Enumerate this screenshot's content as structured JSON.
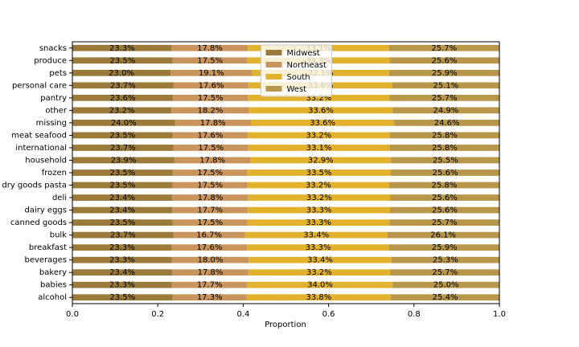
{
  "chart_data": {
    "type": "stacked_barh",
    "x_label": "Proportion",
    "categories": [
      "alcohol",
      "babies",
      "bakery",
      "beverages",
      "breakfast",
      "bulk",
      "canned goods",
      "dairy eggs",
      "deli",
      "dry goods pasta",
      "frozen",
      "household",
      "international",
      "meat seafood",
      "missing",
      "other",
      "pantry",
      "personal care",
      "pets",
      "produce",
      "snacks"
    ],
    "series": [
      {
        "name": "Midwest",
        "color": "#9c7b3a",
        "values": [
          0.235,
          0.233,
          0.234,
          0.233,
          0.233,
          0.237,
          0.235,
          0.234,
          0.234,
          0.235,
          0.235,
          0.239,
          0.237,
          0.235,
          0.24,
          0.232,
          0.236,
          0.237,
          0.23,
          0.235,
          0.233
        ],
        "value_labels": [
          "23.5%",
          "23.3%",
          "23.4%",
          "23.3%",
          "23.3%",
          "23.7%",
          "23.5%",
          "23.4%",
          "23.4%",
          "23.5%",
          "23.5%",
          "23.9%",
          "23.7%",
          "23.5%",
          "24.0%",
          "23.2%",
          "23.6%",
          "23.7%",
          "23.0%",
          "23.5%",
          "23.3%"
        ]
      },
      {
        "name": "Northeast",
        "color": "#c9955c",
        "values": [
          0.173,
          0.177,
          0.178,
          0.18,
          0.176,
          0.167,
          0.175,
          0.177,
          0.178,
          0.175,
          0.175,
          0.178,
          0.175,
          0.176,
          0.178,
          0.182,
          0.175,
          0.176,
          0.191,
          0.175,
          0.178
        ],
        "value_labels": [
          "17.3%",
          "17.7%",
          "17.8%",
          "18.0%",
          "17.6%",
          "16.7%",
          "17.5%",
          "17.7%",
          "17.8%",
          "17.5%",
          "17.5%",
          "17.8%",
          "17.5%",
          "17.6%",
          "17.8%",
          "18.2%",
          "17.5%",
          "17.6%",
          "19.1%",
          "17.5%",
          "17.8%"
        ]
      },
      {
        "name": "South",
        "color": "#e3b22c",
        "values": [
          0.338,
          0.34,
          0.332,
          0.334,
          0.333,
          0.334,
          0.333,
          0.333,
          0.332,
          0.332,
          0.335,
          0.329,
          0.331,
          0.332,
          0.336,
          0.336,
          0.332,
          0.336,
          0.321,
          0.333,
          0.331
        ],
        "value_labels": [
          "33.8%",
          "34.0%",
          "33.2%",
          "33.4%",
          "33.3%",
          "33.4%",
          "33.3%",
          "33.3%",
          "33.2%",
          "33.2%",
          "33.5%",
          "32.9%",
          "33.1%",
          "33.2%",
          "33.6%",
          "33.6%",
          "33.2%",
          "33.6%",
          "32.1%",
          "33.3%",
          "33.1%"
        ]
      },
      {
        "name": "West",
        "color": "#b8964a",
        "values": [
          0.254,
          0.25,
          0.257,
          0.253,
          0.259,
          0.261,
          0.257,
          0.256,
          0.256,
          0.258,
          0.256,
          0.255,
          0.258,
          0.258,
          0.246,
          0.249,
          0.257,
          0.251,
          0.259,
          0.256,
          0.257
        ],
        "value_labels": [
          "25.4%",
          "25.0%",
          "25.7%",
          "25.3%",
          "25.9%",
          "26.1%",
          "25.7%",
          "25.6%",
          "25.6%",
          "25.8%",
          "25.6%",
          "25.5%",
          "25.8%",
          "25.8%",
          "24.6%",
          "24.9%",
          "25.7%",
          "25.1%",
          "25.9%",
          "25.6%",
          "25.7%"
        ]
      }
    ],
    "xlim": [
      0,
      1
    ],
    "xticks": [
      {
        "value": 0,
        "label": "0.0"
      },
      0.2,
      0.4,
      0.6,
      0.8,
      {
        "value": 1,
        "label": "1.0"
      }
    ],
    "legend": "upper center"
  }
}
